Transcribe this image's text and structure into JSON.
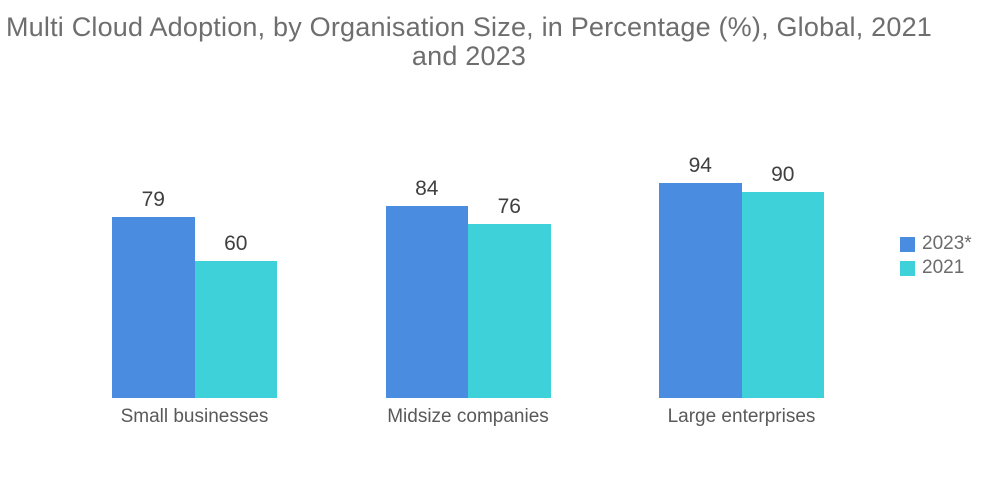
{
  "header": {
    "title_line1": "Multi Cloud Adoption, by Organisation Size, in Percentage (%), Global, 2021",
    "title_line2": "and 2023"
  },
  "colors": {
    "series_2023": "#4A8DE0",
    "series_2021": "#3FD1D9",
    "title_text": "#6E6E6E",
    "value_label_text": "#3F3F3F",
    "category_label_text": "#595959",
    "legend_text": "#6B6B6B",
    "background": "#FFFFFF"
  },
  "chart_data": {
    "type": "bar",
    "title": "Multi Cloud Adoption, by Organisation Size, in Percentage (%), Global, 2021 and 2023",
    "categories": [
      "Small businesses",
      "Midsize companies",
      "Large enterprises"
    ],
    "series": [
      {
        "name": "2023*",
        "color": "#4A8DE0",
        "values": [
          79,
          84,
          94
        ]
      },
      {
        "name": "2021",
        "color": "#3FD1D9",
        "values": [
          60,
          76,
          90
        ]
      }
    ],
    "xlabel": "",
    "ylabel": "",
    "ylim": [
      0,
      100
    ],
    "grid": false,
    "axes_visible": false,
    "value_labels": true,
    "legend_position": "right"
  }
}
